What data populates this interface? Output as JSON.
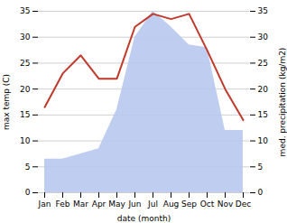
{
  "chart_data": {
    "type": "line",
    "xlabel": "date (month)",
    "ylabel": "max temp (C)",
    "y2label": "med. precipitation (kg/m2)",
    "categories": [
      "Jan",
      "Feb",
      "Mar",
      "Apr",
      "May",
      "Jun",
      "Jul",
      "Aug",
      "Sep",
      "Oct",
      "Nov",
      "Dec"
    ],
    "series": [
      {
        "type": "area",
        "axis": "y2",
        "color": "#b8c8ee",
        "values": [
          6.5,
          6.5,
          7.5,
          8.5,
          16.0,
          30.0,
          35.0,
          32.0,
          28.5,
          28.0,
          12.0,
          12.0
        ]
      },
      {
        "type": "line",
        "color": "#c0392b",
        "values": [
          16.5,
          23.0,
          26.5,
          22.0,
          22.0,
          32.0,
          34.5,
          33.5,
          34.5,
          27.5,
          20.0,
          14.0
        ]
      }
    ],
    "ylim": [
      0,
      35
    ],
    "yticks": [
      0,
      5,
      10,
      15,
      20,
      25,
      30,
      35
    ],
    "y2lim": [
      0,
      35
    ],
    "y2ticks": [
      0,
      5,
      10,
      15,
      20,
      25,
      30,
      35
    ],
    "grid": true
  }
}
